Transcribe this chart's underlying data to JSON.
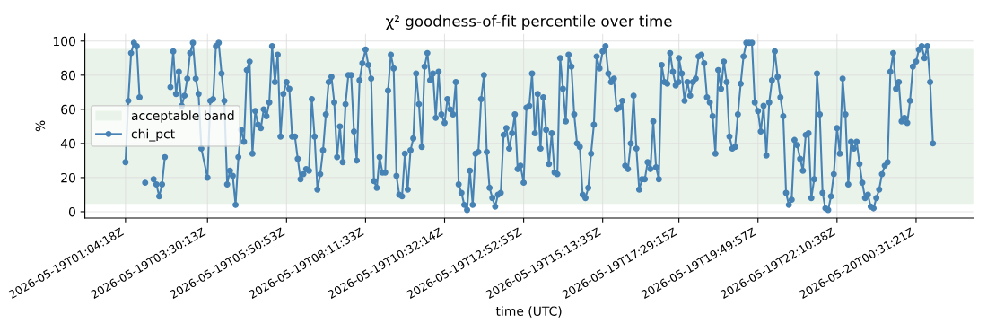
{
  "chart_data": {
    "type": "line",
    "title": "χ² goodness-of-fit percentile over time",
    "xlabel": "time (UTC)",
    "ylabel": "%",
    "x": [
      "2026-05-19T01:04:18",
      "2026-05-19T01:09:18",
      "2026-05-19T01:14:18",
      "2026-05-19T01:19:18",
      "2026-05-19T01:24:18",
      "2026-05-19T01:29:18",
      "2026-05-19T01:34:18",
      "2026-05-19T01:39:18",
      "2026-05-19T01:44:18",
      "2026-05-19T01:49:18",
      "2026-05-19T01:54:18",
      "2026-05-19T01:59:18",
      "2026-05-19T02:04:18",
      "2026-05-19T02:09:18",
      "2026-05-19T02:14:18",
      "2026-05-19T02:19:18",
      "2026-05-19T02:24:18",
      "2026-05-19T02:29:18",
      "2026-05-19T02:34:18",
      "2026-05-19T02:39:18",
      "2026-05-19T02:44:18",
      "2026-05-19T02:49:18",
      "2026-05-19T02:54:18",
      "2026-05-19T02:59:18",
      "2026-05-19T03:04:18",
      "2026-05-19T03:09:18",
      "2026-05-19T03:14:18",
      "2026-05-19T03:19:18",
      "2026-05-19T03:30:13",
      "2026-05-19T03:35:13",
      "2026-05-19T03:40:13",
      "2026-05-19T03:45:13",
      "2026-05-19T03:50:13",
      "2026-05-19T03:55:13",
      "2026-05-19T04:00:13",
      "2026-05-19T04:05:13",
      "2026-05-19T04:10:13",
      "2026-05-19T04:15:13",
      "2026-05-19T04:20:13",
      "2026-05-19T04:25:13",
      "2026-05-19T04:30:13",
      "2026-05-19T04:35:13",
      "2026-05-19T04:40:13",
      "2026-05-19T04:45:13",
      "2026-05-19T04:50:13",
      "2026-05-19T04:55:13",
      "2026-05-19T05:00:13",
      "2026-05-19T05:05:13",
      "2026-05-19T05:10:13",
      "2026-05-19T05:15:13",
      "2026-05-19T05:20:13",
      "2026-05-19T05:25:13",
      "2026-05-19T05:30:13",
      "2026-05-19T05:35:13",
      "2026-05-19T05:40:13",
      "2026-05-19T05:45:13",
      "2026-05-19T05:50:53",
      "2026-05-19T05:55:53",
      "2026-05-19T06:00:53",
      "2026-05-19T06:05:53",
      "2026-05-19T06:10:53",
      "2026-05-19T06:15:53",
      "2026-05-19T06:20:53",
      "2026-05-19T06:25:53",
      "2026-05-19T06:30:53",
      "2026-05-19T06:35:53",
      "2026-05-19T06:40:53",
      "2026-05-19T06:45:53",
      "2026-05-19T06:50:53",
      "2026-05-19T06:55:53",
      "2026-05-19T07:00:53",
      "2026-05-19T07:05:53",
      "2026-05-19T07:10:53",
      "2026-05-19T07:15:53",
      "2026-05-19T07:20:53",
      "2026-05-19T07:25:53",
      "2026-05-19T07:30:53",
      "2026-05-19T07:35:53",
      "2026-05-19T07:40:53",
      "2026-05-19T07:45:53",
      "2026-05-19T07:50:53",
      "2026-05-19T07:55:53",
      "2026-05-19T08:00:53",
      "2026-05-19T08:05:53",
      "2026-05-19T08:11:33",
      "2026-05-19T08:16:33",
      "2026-05-19T08:21:33",
      "2026-05-19T08:26:33",
      "2026-05-19T08:31:33",
      "2026-05-19T08:36:33",
      "2026-05-19T08:41:33",
      "2026-05-19T08:46:33",
      "2026-05-19T08:51:33",
      "2026-05-19T08:56:33",
      "2026-05-19T09:01:33",
      "2026-05-19T09:06:33",
      "2026-05-19T09:11:33",
      "2026-05-19T09:16:33",
      "2026-05-19T09:21:33",
      "2026-05-19T09:26:33",
      "2026-05-19T09:31:33",
      "2026-05-19T09:36:33",
      "2026-05-19T09:41:33",
      "2026-05-19T09:46:33",
      "2026-05-19T09:51:33",
      "2026-05-19T09:56:33",
      "2026-05-19T10:01:33",
      "2026-05-19T10:06:33",
      "2026-05-19T10:11:33",
      "2026-05-19T10:16:33",
      "2026-05-19T10:21:33",
      "2026-05-19T10:26:33",
      "2026-05-19T10:32:14",
      "2026-05-19T10:37:14",
      "2026-05-19T10:42:14",
      "2026-05-19T10:47:14",
      "2026-05-19T10:52:14",
      "2026-05-19T10:57:14",
      "2026-05-19T11:02:14",
      "2026-05-19T11:07:14",
      "2026-05-19T11:12:14",
      "2026-05-19T11:17:14",
      "2026-05-19T11:22:14",
      "2026-05-19T11:27:14",
      "2026-05-19T11:32:14",
      "2026-05-19T11:37:14",
      "2026-05-19T11:42:14",
      "2026-05-19T11:47:14",
      "2026-05-19T11:52:14",
      "2026-05-19T11:57:14",
      "2026-05-19T12:02:14",
      "2026-05-19T12:07:14",
      "2026-05-19T12:12:14",
      "2026-05-19T12:17:14",
      "2026-05-19T12:22:14",
      "2026-05-19T12:27:14",
      "2026-05-19T12:32:14",
      "2026-05-19T12:37:14",
      "2026-05-19T12:42:14",
      "2026-05-19T12:47:14",
      "2026-05-19T12:52:55",
      "2026-05-19T12:57:55",
      "2026-05-19T13:02:55",
      "2026-05-19T13:07:55",
      "2026-05-19T13:12:55",
      "2026-05-19T13:17:55",
      "2026-05-19T13:22:55",
      "2026-05-19T13:27:55",
      "2026-05-19T13:32:55",
      "2026-05-19T13:37:55",
      "2026-05-19T13:42:55",
      "2026-05-19T13:47:55",
      "2026-05-19T13:52:55",
      "2026-05-19T13:57:55",
      "2026-05-19T14:02:55",
      "2026-05-19T14:07:55",
      "2026-05-19T14:12:55",
      "2026-05-19T14:17:55",
      "2026-05-19T14:22:55",
      "2026-05-19T14:27:55",
      "2026-05-19T14:32:55",
      "2026-05-19T14:37:55",
      "2026-05-19T14:42:55",
      "2026-05-19T14:47:55",
      "2026-05-19T14:52:55",
      "2026-05-19T14:57:55",
      "2026-05-19T15:02:55",
      "2026-05-19T15:07:55",
      "2026-05-19T15:13:35",
      "2026-05-19T15:18:35",
      "2026-05-19T15:23:35",
      "2026-05-19T15:28:35",
      "2026-05-19T15:33:35",
      "2026-05-19T15:38:35",
      "2026-05-19T15:43:35",
      "2026-05-19T15:48:35",
      "2026-05-19T15:53:35",
      "2026-05-19T15:58:35",
      "2026-05-19T16:03:35",
      "2026-05-19T16:08:35",
      "2026-05-19T16:13:35",
      "2026-05-19T16:18:35",
      "2026-05-19T16:23:35",
      "2026-05-19T16:28:35",
      "2026-05-19T16:33:35",
      "2026-05-19T16:38:35",
      "2026-05-19T16:43:35",
      "2026-05-19T16:48:35",
      "2026-05-19T16:53:35",
      "2026-05-19T16:58:35",
      "2026-05-19T17:03:35",
      "2026-05-19T17:08:35",
      "2026-05-19T17:13:35",
      "2026-05-19T17:18:35",
      "2026-05-19T17:23:35",
      "2026-05-19T17:28:35",
      "2026-05-19T17:29:15",
      "2026-05-19T17:34:15",
      "2026-05-19T17:39:15",
      "2026-05-19T17:44:15",
      "2026-05-19T17:49:15",
      "2026-05-19T17:54:15",
      "2026-05-19T17:59:15",
      "2026-05-19T18:04:15",
      "2026-05-19T18:09:15",
      "2026-05-19T18:14:15",
      "2026-05-19T18:19:15",
      "2026-05-19T18:24:15",
      "2026-05-19T18:29:15",
      "2026-05-19T18:34:15",
      "2026-05-19T18:39:15",
      "2026-05-19T18:44:15",
      "2026-05-19T18:49:15",
      "2026-05-19T18:54:15",
      "2026-05-19T18:59:15",
      "2026-05-19T19:04:15",
      "2026-05-19T19:09:15",
      "2026-05-19T19:14:15",
      "2026-05-19T19:19:15",
      "2026-05-19T19:24:15",
      "2026-05-19T19:29:15",
      "2026-05-19T19:34:15",
      "2026-05-19T19:39:15",
      "2026-05-19T19:44:15",
      "2026-05-19T19:49:57",
      "2026-05-19T19:54:57",
      "2026-05-19T19:59:57",
      "2026-05-19T20:04:57",
      "2026-05-19T20:09:57",
      "2026-05-19T20:14:57",
      "2026-05-19T20:19:57",
      "2026-05-19T20:24:57",
      "2026-05-19T20:29:57",
      "2026-05-19T20:34:57",
      "2026-05-19T20:39:57",
      "2026-05-19T20:44:57",
      "2026-05-19T20:49:57",
      "2026-05-19T20:54:57",
      "2026-05-19T20:59:57",
      "2026-05-19T21:04:57",
      "2026-05-19T21:09:57",
      "2026-05-19T21:14:57",
      "2026-05-19T21:19:57",
      "2026-05-19T21:24:57",
      "2026-05-19T21:29:57",
      "2026-05-19T21:34:57",
      "2026-05-19T21:39:57",
      "2026-05-19T21:44:57",
      "2026-05-19T21:49:57",
      "2026-05-19T21:54:57",
      "2026-05-19T21:59:57",
      "2026-05-19T22:04:57",
      "2026-05-19T22:10:38",
      "2026-05-19T22:15:38",
      "2026-05-19T22:20:38",
      "2026-05-19T22:25:38",
      "2026-05-19T22:30:38",
      "2026-05-19T22:35:38",
      "2026-05-19T22:40:38",
      "2026-05-19T22:45:38",
      "2026-05-19T22:50:38",
      "2026-05-19T22:55:38",
      "2026-05-19T23:00:38",
      "2026-05-19T23:05:38",
      "2026-05-19T23:10:38",
      "2026-05-19T23:15:38",
      "2026-05-19T23:20:38",
      "2026-05-19T23:25:38",
      "2026-05-19T23:30:38",
      "2026-05-19T23:35:38",
      "2026-05-19T23:40:38",
      "2026-05-19T23:45:38",
      "2026-05-19T23:50:38",
      "2026-05-19T23:55:38",
      "2026-05-20T00:00:38",
      "2026-05-20T00:05:38",
      "2026-05-20T00:10:38",
      "2026-05-20T00:15:38",
      "2026-05-20T00:20:38",
      "2026-05-20T00:25:38",
      "2026-05-20T00:31:21",
      "2026-05-20T00:36:21",
      "2026-05-20T00:41:21",
      "2026-05-20T00:46:21",
      "2026-05-20T00:51:21",
      "2026-05-20T00:56:21",
      "2026-05-20T01:01:21"
    ],
    "xticks": [
      {
        "value": "2026-05-19T01:04:18",
        "label": "2026-05-19T01:04:18Z"
      },
      {
        "value": "2026-05-19T03:30:13",
        "label": "2026-05-19T03:30:13Z"
      },
      {
        "value": "2026-05-19T05:50:53",
        "label": "2026-05-19T05:50:53Z"
      },
      {
        "value": "2026-05-19T08:11:33",
        "label": "2026-05-19T08:11:33Z"
      },
      {
        "value": "2026-05-19T10:32:14",
        "label": "2026-05-19T10:32:14Z"
      },
      {
        "value": "2026-05-19T12:52:55",
        "label": "2026-05-19T12:52:55Z"
      },
      {
        "value": "2026-05-19T15:13:35",
        "label": "2026-05-19T15:13:35Z"
      },
      {
        "value": "2026-05-19T17:29:15",
        "label": "2026-05-19T17:29:15Z"
      },
      {
        "value": "2026-05-19T19:49:57",
        "label": "2026-05-19T19:49:57Z"
      },
      {
        "value": "2026-05-19T22:10:38",
        "label": "2026-05-19T22:10:38Z"
      },
      {
        "value": "2026-05-20T00:31:21",
        "label": "2026-05-20T00:31:21Z"
      }
    ],
    "xlim": [
      "2026-05-18T23:52:00",
      "2026-05-20T02:13:00"
    ],
    "series": [
      {
        "name": "chi_pct",
        "color": "#4682b4",
        "values": [
          29,
          65,
          93,
          99,
          97,
          67,
          null,
          17,
          null,
          null,
          19,
          16,
          9,
          16,
          32,
          null,
          73,
          94,
          69,
          82,
          62,
          68,
          78,
          93,
          99,
          78,
          69,
          37,
          20,
          65,
          66,
          97,
          99,
          81,
          65,
          16,
          24,
          21,
          4,
          32,
          48,
          41,
          83,
          88,
          34,
          59,
          51,
          49,
          60,
          56,
          64,
          97,
          76,
          92,
          44,
          69,
          76,
          72,
          44,
          44,
          31,
          19,
          22,
          25,
          24,
          66,
          44,
          13,
          22,
          36,
          57,
          76,
          79,
          64,
          32,
          50,
          29,
          63,
          80,
          80,
          47,
          30,
          77,
          87,
          95,
          86,
          78,
          18,
          14,
          32,
          23,
          23,
          71,
          92,
          84,
          21,
          10,
          9,
          34,
          13,
          36,
          43,
          81,
          63,
          38,
          85,
          93,
          77,
          81,
          55,
          82,
          57,
          52,
          66,
          60,
          57,
          76,
          16,
          11,
          4,
          1,
          24,
          4,
          34,
          35,
          66,
          80,
          35,
          14,
          8,
          3,
          10,
          11,
          45,
          49,
          37,
          46,
          57,
          25,
          27,
          17,
          61,
          62,
          81,
          46,
          69,
          37,
          67,
          48,
          28,
          46,
          23,
          22,
          90,
          72,
          53,
          92,
          85,
          57,
          40,
          38,
          10,
          8,
          14,
          34,
          51,
          91,
          84,
          94,
          97,
          81,
          76,
          78,
          60,
          61,
          65,
          27,
          25,
          40,
          68,
          37,
          13,
          19,
          19,
          29,
          25,
          53,
          26,
          19,
          86,
          76,
          75,
          93,
          82,
          74,
          76,
          90,
          81,
          65,
          76,
          68,
          76,
          78,
          91,
          92,
          87,
          67,
          64,
          56,
          34,
          83,
          72,
          88,
          76,
          44,
          37,
          38,
          57,
          75,
          91,
          99,
          99,
          99,
          64,
          59,
          47,
          62,
          33,
          64,
          77,
          94,
          79,
          67,
          56,
          11,
          4,
          7,
          42,
          39,
          31,
          24,
          45,
          46,
          8,
          19,
          81,
          57,
          11,
          2,
          1,
          9,
          22,
          49,
          34,
          78,
          57,
          16,
          41,
          37,
          41,
          28,
          17,
          8,
          10,
          3,
          2,
          8,
          13,
          22,
          27,
          29,
          82,
          93,
          72,
          76,
          53,
          55,
          52,
          65,
          85,
          88,
          95,
          97,
          90,
          97,
          76,
          40
        ]
      }
    ],
    "bands": [
      {
        "axis": "y",
        "from": 5,
        "to": 95,
        "label": "acceptable band",
        "color": "#eaf3e9"
      }
    ],
    "ylim": [
      -3.7,
      104.2
    ],
    "yticks": [
      0,
      20,
      40,
      60,
      80,
      100
    ],
    "grid": true,
    "legend": "left",
    "marker": "circle",
    "line_style": "solid"
  }
}
